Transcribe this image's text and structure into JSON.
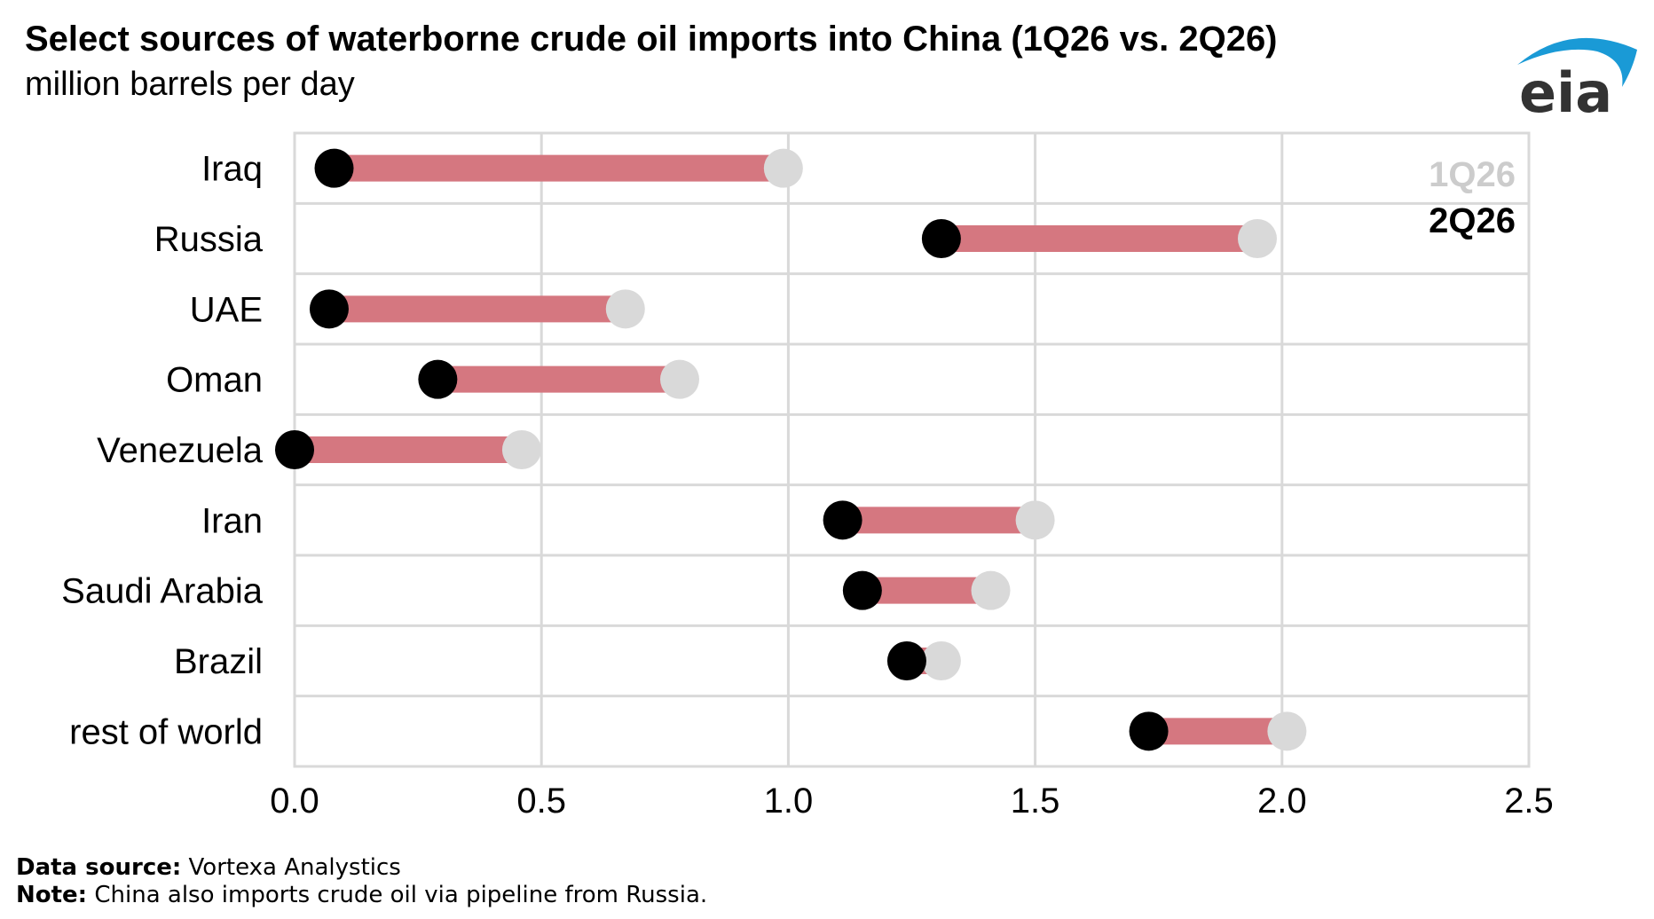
{
  "title": "Select sources of waterborne crude oil imports into China (1Q26 vs. 2Q26)",
  "subtitle": "million barrels per day",
  "logo_text": "eia",
  "footer": {
    "source_label": "Data source:",
    "source_text": "Vortexa Analystics",
    "note_label": "Note:",
    "note_text": "China also imports crude oil via pipeline from Russia."
  },
  "colors": {
    "q1": "#d9d9d9",
    "q2": "#000000",
    "bar": "#d57780",
    "grid": "#d9d9d9",
    "logo_blue": "#1a9ad6",
    "logo_text": "#333333",
    "legend_q1": "#cccccc"
  },
  "chart_data": {
    "type": "dumbbell",
    "categories": [
      "Iraq",
      "Russia",
      "UAE",
      "Oman",
      "Venezuela",
      "Iran",
      "Saudi Arabia",
      "Brazil",
      "rest of world"
    ],
    "series": [
      {
        "name": "1Q26",
        "values": [
          0.99,
          1.95,
          0.67,
          0.78,
          0.46,
          1.5,
          1.41,
          1.31,
          2.01
        ]
      },
      {
        "name": "2Q26",
        "values": [
          0.08,
          1.31,
          0.07,
          0.29,
          0.0,
          1.11,
          1.15,
          1.24,
          1.73
        ]
      }
    ],
    "x_ticks": [
      "0.0",
      "0.5",
      "1.0",
      "1.5",
      "2.0",
      "2.5"
    ],
    "xlim": [
      0,
      2.5
    ],
    "grid": true,
    "legend_position": "top-right"
  }
}
